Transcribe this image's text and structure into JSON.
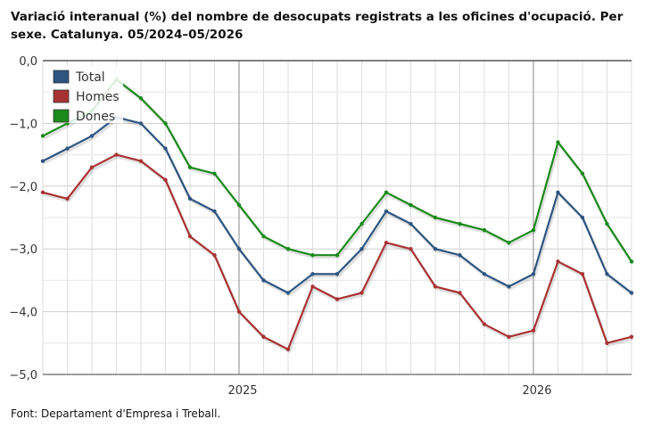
{
  "chart_data": {
    "type": "line",
    "title": "Variació interanual (%) del nombre de desocupats registrats a les oficines d'ocupació. Per sexe. Catalunya. 05/2024–05/2026",
    "source": "Font: Departament d'Empresa i Treball.",
    "x": [
      "2024-05",
      "2024-06",
      "2024-07",
      "2024-08",
      "2024-09",
      "2024-10",
      "2024-11",
      "2024-12",
      "2025-01",
      "2025-02",
      "2025-03",
      "2025-04",
      "2025-05",
      "2025-06",
      "2025-07",
      "2025-08",
      "2025-09",
      "2025-10",
      "2025-11",
      "2025-12",
      "2026-01",
      "2026-02",
      "2026-03",
      "2026-04",
      "2026-05"
    ],
    "x_tick_labels": [
      {
        "x": "2025-01",
        "label": "2025"
      },
      {
        "x": "2026-01",
        "label": "2026"
      }
    ],
    "y_tick_labels": [
      "0,0",
      "−1,0",
      "−2,0",
      "−3,0",
      "−4,0",
      "−5,0"
    ],
    "ylim": [
      -5,
      0
    ],
    "grid": true,
    "legend_position": "top-left",
    "series": [
      {
        "name": "Total",
        "color": "#2e5580",
        "values": [
          -1.6,
          -1.4,
          -1.2,
          -0.9,
          -1.0,
          -1.4,
          -2.2,
          -2.4,
          -3.0,
          -3.5,
          -3.7,
          -3.4,
          -3.4,
          -3.0,
          -2.4,
          -2.6,
          -3.0,
          -3.1,
          -3.4,
          -3.6,
          -3.4,
          -2.1,
          -2.5,
          -3.4,
          -3.7
        ]
      },
      {
        "name": "Homes",
        "color": "#a83232",
        "values": [
          -2.1,
          -2.2,
          -1.7,
          -1.5,
          -1.6,
          -1.9,
          -2.8,
          -3.1,
          -4.0,
          -4.4,
          -4.6,
          -3.6,
          -3.8,
          -3.7,
          -2.9,
          -3.0,
          -3.6,
          -3.7,
          -4.2,
          -4.4,
          -4.3,
          -3.2,
          -3.4,
          -4.5,
          -4.4
        ]
      },
      {
        "name": "Dones",
        "color": "#1a8a1a",
        "values": [
          -1.2,
          -1.0,
          -0.8,
          -0.3,
          -0.6,
          -1.0,
          -1.7,
          -1.8,
          -2.3,
          -2.8,
          -3.0,
          -3.1,
          -3.1,
          -2.6,
          -2.1,
          -2.3,
          -2.5,
          -2.6,
          -2.7,
          -2.9,
          -2.7,
          -1.3,
          -1.8,
          -2.6,
          -3.2
        ]
      }
    ]
  }
}
